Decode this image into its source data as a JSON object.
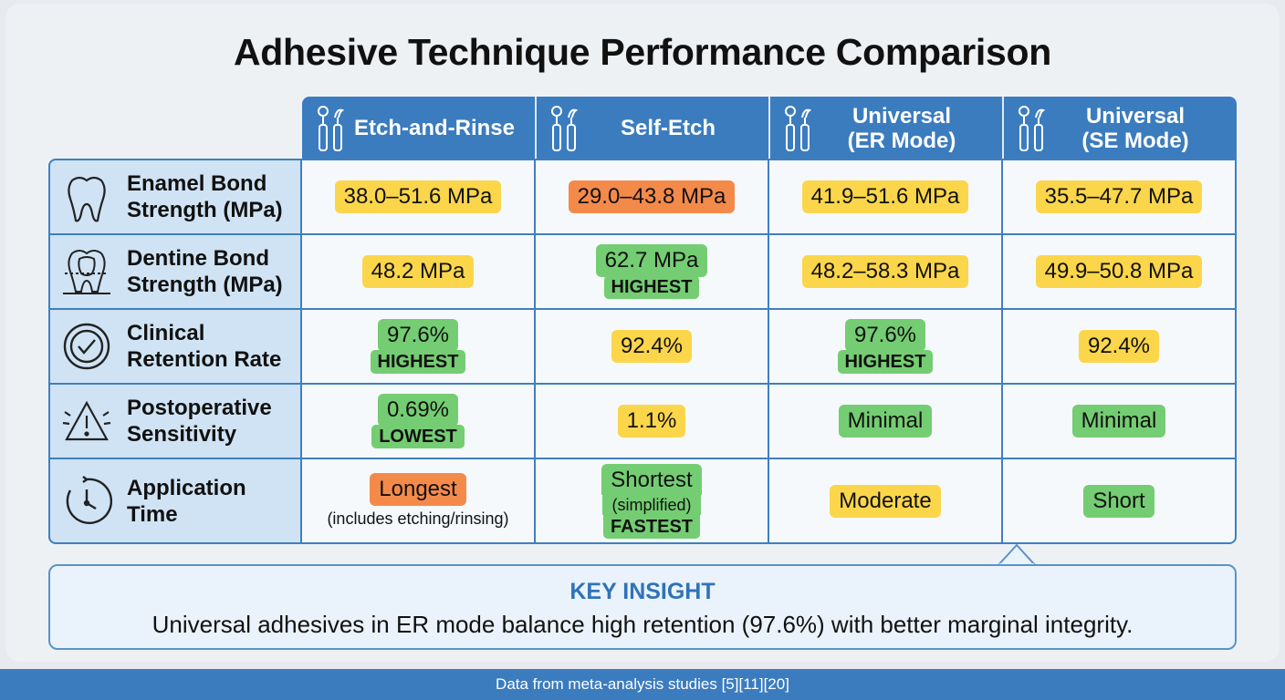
{
  "title": "Adhesive Technique Performance Comparison",
  "columns": [
    {
      "label": "Etch-and-Rinse",
      "icon": "dental-tools-icon"
    },
    {
      "label": "Self-Etch",
      "icon": "dental-tools-icon"
    },
    {
      "label": "Universal\n(ER Mode)",
      "icon": "dental-tools-icon"
    },
    {
      "label": "Universal\n(SE Mode)",
      "icon": "dental-tools-icon"
    }
  ],
  "rows": [
    {
      "label": "Enamel Bond\nStrength (MPa)",
      "icon": "tooth-icon",
      "cells": [
        {
          "value": "38.0–51.6 MPa",
          "color": "yellow"
        },
        {
          "value": "29.0–43.8 MPa",
          "color": "orange"
        },
        {
          "value": "41.9–51.6 MPa",
          "color": "yellow"
        },
        {
          "value": "35.5–47.7 MPa",
          "color": "yellow"
        }
      ]
    },
    {
      "label": "Dentine Bond\nStrength (MPa)",
      "icon": "tooth-cross-section-icon",
      "cells": [
        {
          "value": "48.2 MPa",
          "color": "yellow"
        },
        {
          "value": "62.7 MPa",
          "color": "green",
          "tag": "HIGHEST"
        },
        {
          "value": "48.2–58.3 MPa",
          "color": "yellow"
        },
        {
          "value": "49.9–50.8 MPa",
          "color": "yellow"
        }
      ]
    },
    {
      "label": "Clinical\nRetention Rate",
      "icon": "check-circle-icon",
      "cells": [
        {
          "value": "97.6%",
          "color": "green",
          "tag": "HIGHEST"
        },
        {
          "value": "92.4%",
          "color": "yellow"
        },
        {
          "value": "97.6%",
          "color": "green",
          "tag": "HIGHEST"
        },
        {
          "value": "92.4%",
          "color": "yellow"
        }
      ]
    },
    {
      "label": "Postoperative\nSensitivity",
      "icon": "warning-icon",
      "cells": [
        {
          "value": "0.69%",
          "color": "green",
          "tag": "LOWEST"
        },
        {
          "value": "1.1%",
          "color": "yellow"
        },
        {
          "value": "Minimal",
          "color": "green"
        },
        {
          "value": "Minimal",
          "color": "green"
        }
      ]
    },
    {
      "label": "Application\nTime",
      "icon": "clock-icon",
      "cells": [
        {
          "value": "Longest",
          "color": "orange",
          "note": "(includes etching/rinsing)"
        },
        {
          "value": "Shortest",
          "color": "green",
          "subnote": "(simplified)",
          "tag": "FASTEST"
        },
        {
          "value": "Moderate",
          "color": "yellow"
        },
        {
          "value": "Short",
          "color": "green"
        }
      ]
    }
  ],
  "insight": {
    "heading": "KEY INSIGHT",
    "text": "Universal adhesives in ER mode balance high retention (97.6%) with better marginal integrity."
  },
  "footer": "Data from meta-analysis studies [5][11][20]",
  "colors": {
    "header": "#3b7cbf",
    "yellow": "#fbd64a",
    "green": "#74cd72",
    "orange": "#f48a4a",
    "label_bg": "#cfe3f4"
  }
}
